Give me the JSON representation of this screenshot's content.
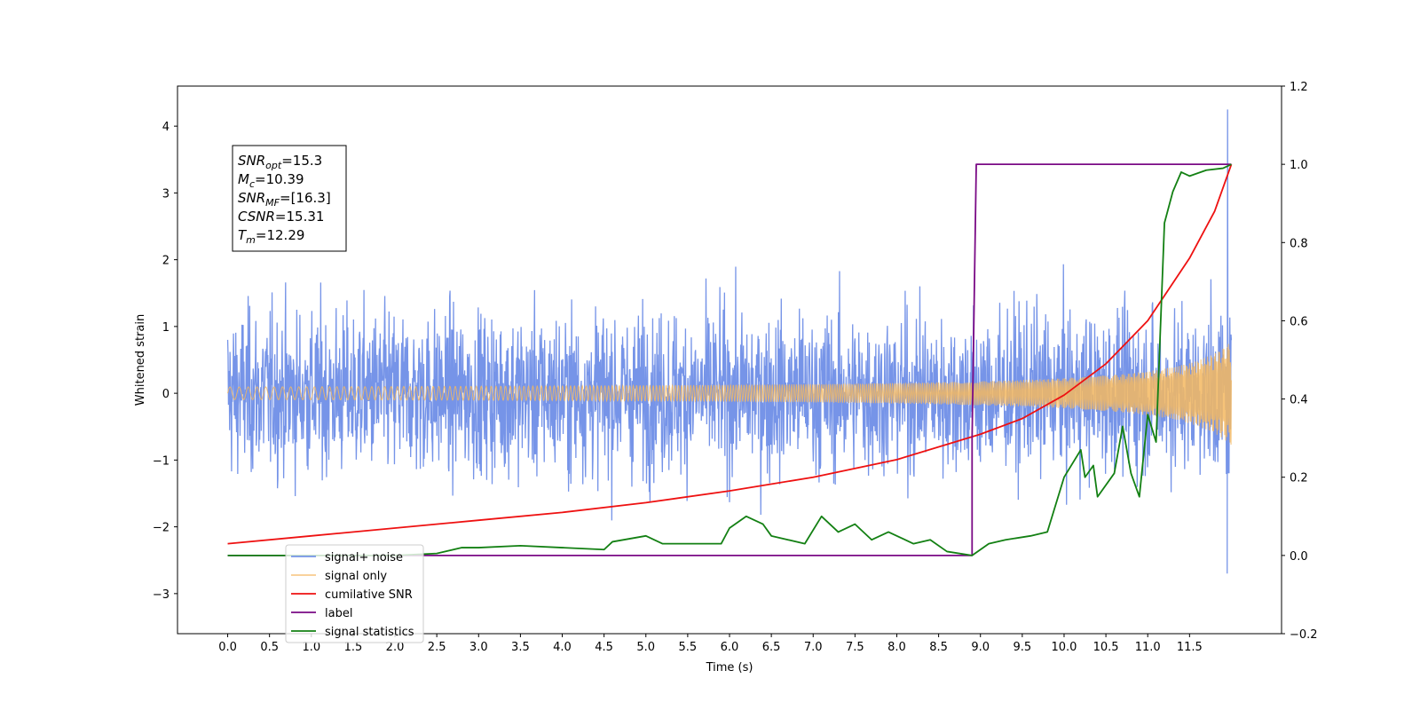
{
  "chart_data": {
    "type": "line",
    "xlabel": "Time (s)",
    "ylabel": "Whitened strain",
    "xlim": [
      -0.6,
      12.6
    ],
    "ylim": [
      -3.6,
      4.6
    ],
    "y2lim": [
      -0.2,
      1.2
    ],
    "x_ticks": [
      "0.0",
      "0.5",
      "1.0",
      "1.5",
      "2.0",
      "2.5",
      "3.0",
      "3.5",
      "4.0",
      "4.5",
      "5.0",
      "5.5",
      "6.0",
      "6.5",
      "7.0",
      "7.5",
      "8.0",
      "8.5",
      "9.0",
      "9.5",
      "10.0",
      "10.5",
      "11.0",
      "11.5"
    ],
    "y_ticks": [
      "−3",
      "−2",
      "−1",
      "0",
      "1",
      "2",
      "3",
      "4"
    ],
    "y2_ticks": [
      "−0.2",
      "0.0",
      "0.2",
      "0.4",
      "0.6",
      "0.8",
      "1.0",
      "1.2"
    ],
    "grid": false,
    "legend_position": "lower-left",
    "annotation": {
      "snr_opt": {
        "sym": "SNR",
        "sub": "opt",
        "val": "=15.3"
      },
      "mc": {
        "sym": "M",
        "sub": "c",
        "val": "=10.39"
      },
      "snr_mf": {
        "sym": "SNR",
        "sub": "MF",
        "val": "=[16.3]"
      },
      "csnr": {
        "sym": "CSNR",
        "sub": "",
        "val": "=15.31"
      },
      "tm": {
        "sym": "T",
        "sub": "m",
        "val": "=12.29"
      }
    },
    "series": [
      {
        "name": "signal+ noise",
        "color": "#7694e8",
        "axis": "left",
        "description_values": "noise band roughly ±2.3, spikes to ~4.25 at t≈11.95"
      },
      {
        "name": "signal only",
        "color": "#f5b860",
        "axis": "left",
        "chirp_amplitude_start": 0.06,
        "chirp_amplitude_end": 0.82
      },
      {
        "name": "cumilative SNR",
        "color": "#ee1111",
        "axis": "right",
        "x": [
          0,
          1,
          2,
          3,
          4,
          5,
          6,
          7,
          8,
          9,
          9.5,
          10,
          10.5,
          11,
          11.5,
          11.8,
          12
        ],
        "values": [
          0.03,
          0.05,
          0.07,
          0.09,
          0.11,
          0.135,
          0.165,
          0.2,
          0.245,
          0.31,
          0.35,
          0.41,
          0.49,
          0.6,
          0.76,
          0.88,
          1.0
        ]
      },
      {
        "name": "label",
        "color": "#7a0a85",
        "axis": "right",
        "x": [
          0,
          8.9,
          8.9,
          8.95,
          12
        ],
        "values": [
          0,
          0,
          0.3,
          1.0,
          1.0
        ]
      },
      {
        "name": "signal statistics",
        "color": "#138013",
        "axis": "right",
        "x": [
          0,
          2.0,
          2.5,
          2.8,
          3.0,
          3.5,
          4.0,
          4.5,
          4.6,
          5.0,
          5.2,
          5.5,
          5.9,
          6.0,
          6.2,
          6.4,
          6.5,
          6.7,
          6.9,
          7.1,
          7.3,
          7.5,
          7.7,
          7.9,
          8.2,
          8.4,
          8.6,
          8.9,
          9.1,
          9.3,
          9.6,
          9.8,
          10.0,
          10.2,
          10.25,
          10.35,
          10.4,
          10.6,
          10.7,
          10.8,
          10.9,
          11.0,
          11.1,
          11.2,
          11.3,
          11.4,
          11.5,
          11.7,
          11.9,
          12.0
        ],
        "values": [
          0,
          0,
          0.005,
          0.02,
          0.02,
          0.025,
          0.02,
          0.015,
          0.035,
          0.05,
          0.03,
          0.03,
          0.03,
          0.07,
          0.1,
          0.08,
          0.05,
          0.04,
          0.03,
          0.1,
          0.06,
          0.08,
          0.04,
          0.06,
          0.03,
          0.04,
          0.01,
          0.0,
          0.03,
          0.04,
          0.05,
          0.06,
          0.2,
          0.27,
          0.2,
          0.23,
          0.15,
          0.21,
          0.33,
          0.21,
          0.15,
          0.36,
          0.29,
          0.85,
          0.93,
          0.98,
          0.97,
          0.985,
          0.99,
          1.0
        ]
      }
    ]
  }
}
